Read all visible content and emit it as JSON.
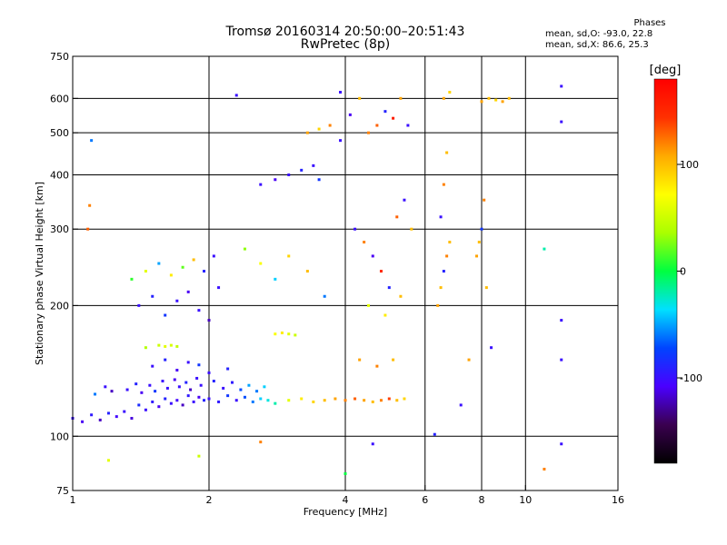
{
  "title": "Tromsø 20160314 20:50:00–20:51:43",
  "subtitle": "RwPretec (8p)",
  "stats": {
    "header": "Phases",
    "line1": "mean, sd,O: -93.0, 22.8",
    "line2": "mean, sd,X:  86.6, 25.3"
  },
  "chart_data": {
    "type": "scatter",
    "title": "Tromsø 20160314 20:50:00–20:51:43",
    "subtitle": "RwPretec (8p)",
    "xlabel": "Frequency [MHz]",
    "ylabel": "Stationary phase Virtual Height [km]",
    "x_scale": "log",
    "y_scale": "log",
    "xlim": [
      1,
      16
    ],
    "ylim": [
      75,
      750
    ],
    "x_ticks": [
      1,
      2,
      4,
      6,
      8,
      10,
      16
    ],
    "x_tick_labels": [
      "1",
      "2",
      "4",
      "6",
      "8",
      "10",
      "16"
    ],
    "y_ticks": [
      75,
      100,
      200,
      300,
      400,
      500,
      600,
      750
    ],
    "y_tick_labels": [
      "75",
      "100",
      "200",
      "300",
      "400",
      "500",
      "600",
      "750"
    ],
    "grid": true,
    "grid_x": [
      2,
      4,
      6,
      8,
      10
    ],
    "grid_y": [
      100,
      200,
      300,
      400,
      500,
      600
    ],
    "colorbar": {
      "label": "[deg]",
      "range": [
        -180,
        180
      ],
      "ticks": [
        -100,
        0,
        100
      ],
      "tick_labels": [
        "-100",
        "0",
        "100"
      ],
      "colors": [
        "#000000",
        "#3a004f",
        "#4a00ff",
        "#0044ff",
        "#00e0ff",
        "#00ff40",
        "#aaff00",
        "#ffff00",
        "#ffaa00",
        "#ff3000",
        "#ff0000"
      ]
    },
    "series": [
      {
        "values": [
          {
            "x": 1.0,
            "y": 110,
            "c": -100
          },
          {
            "x": 1.05,
            "y": 108,
            "c": -110
          },
          {
            "x": 1.1,
            "y": 112,
            "c": -95
          },
          {
            "x": 1.15,
            "y": 109,
            "c": -120
          },
          {
            "x": 1.2,
            "y": 113,
            "c": -90
          },
          {
            "x": 1.25,
            "y": 111,
            "c": -105
          },
          {
            "x": 1.3,
            "y": 114,
            "c": -100
          },
          {
            "x": 1.35,
            "y": 110,
            "c": -115
          },
          {
            "x": 1.4,
            "y": 118,
            "c": -85
          },
          {
            "x": 1.45,
            "y": 115,
            "c": -100
          },
          {
            "x": 1.5,
            "y": 120,
            "c": -95
          },
          {
            "x": 1.55,
            "y": 117,
            "c": -110
          },
          {
            "x": 1.6,
            "y": 122,
            "c": -90
          },
          {
            "x": 1.65,
            "y": 119,
            "c": -100
          },
          {
            "x": 1.7,
            "y": 121,
            "c": -105
          },
          {
            "x": 1.75,
            "y": 118,
            "c": -120
          },
          {
            "x": 1.8,
            "y": 124,
            "c": -95
          },
          {
            "x": 1.85,
            "y": 120,
            "c": -100
          },
          {
            "x": 1.9,
            "y": 123,
            "c": -110
          },
          {
            "x": 1.95,
            "y": 121,
            "c": -90
          },
          {
            "x": 2.0,
            "y": 122,
            "c": -100
          },
          {
            "x": 2.1,
            "y": 120,
            "c": -95
          },
          {
            "x": 2.2,
            "y": 124,
            "c": -80
          },
          {
            "x": 2.3,
            "y": 121,
            "c": -100
          },
          {
            "x": 2.4,
            "y": 123,
            "c": -70
          },
          {
            "x": 2.5,
            "y": 120,
            "c": -60
          },
          {
            "x": 2.6,
            "y": 122,
            "c": -40
          },
          {
            "x": 2.7,
            "y": 121,
            "c": -30
          },
          {
            "x": 2.8,
            "y": 119,
            "c": -20
          },
          {
            "x": 3.0,
            "y": 121,
            "c": 60
          },
          {
            "x": 3.2,
            "y": 122,
            "c": 80
          },
          {
            "x": 3.4,
            "y": 120,
            "c": 90
          },
          {
            "x": 3.6,
            "y": 121,
            "c": 100
          },
          {
            "x": 3.8,
            "y": 122,
            "c": 110
          },
          {
            "x": 4.0,
            "y": 121,
            "c": 120
          },
          {
            "x": 4.2,
            "y": 122,
            "c": 130
          },
          {
            "x": 4.4,
            "y": 121,
            "c": 110
          },
          {
            "x": 4.6,
            "y": 120,
            "c": 100
          },
          {
            "x": 4.8,
            "y": 121,
            "c": 120
          },
          {
            "x": 5.0,
            "y": 122,
            "c": 140
          },
          {
            "x": 5.2,
            "y": 121,
            "c": 100
          },
          {
            "x": 5.4,
            "y": 122,
            "c": 90
          },
          {
            "x": 1.12,
            "y": 125,
            "c": -60
          },
          {
            "x": 1.18,
            "y": 130,
            "c": -100
          },
          {
            "x": 1.22,
            "y": 127,
            "c": -120
          },
          {
            "x": 1.32,
            "y": 128,
            "c": -100
          },
          {
            "x": 1.38,
            "y": 132,
            "c": -90
          },
          {
            "x": 1.42,
            "y": 126,
            "c": -110
          },
          {
            "x": 1.48,
            "y": 131,
            "c": -100
          },
          {
            "x": 1.52,
            "y": 127,
            "c": -80
          },
          {
            "x": 1.58,
            "y": 134,
            "c": -100
          },
          {
            "x": 1.62,
            "y": 129,
            "c": -100
          },
          {
            "x": 1.68,
            "y": 135,
            "c": -110
          },
          {
            "x": 1.72,
            "y": 130,
            "c": -100
          },
          {
            "x": 1.78,
            "y": 133,
            "c": -90
          },
          {
            "x": 1.82,
            "y": 128,
            "c": -120
          },
          {
            "x": 1.88,
            "y": 136,
            "c": -100
          },
          {
            "x": 1.92,
            "y": 131,
            "c": -100
          },
          {
            "x": 2.05,
            "y": 134,
            "c": -90
          },
          {
            "x": 2.15,
            "y": 129,
            "c": -100
          },
          {
            "x": 2.25,
            "y": 133,
            "c": -95
          },
          {
            "x": 2.35,
            "y": 128,
            "c": -70
          },
          {
            "x": 2.45,
            "y": 131,
            "c": -50
          },
          {
            "x": 2.55,
            "y": 127,
            "c": -60
          },
          {
            "x": 2.65,
            "y": 130,
            "c": -40
          },
          {
            "x": 1.5,
            "y": 145,
            "c": -100
          },
          {
            "x": 1.6,
            "y": 150,
            "c": -90
          },
          {
            "x": 1.7,
            "y": 142,
            "c": -110
          },
          {
            "x": 1.8,
            "y": 148,
            "c": -100
          },
          {
            "x": 1.9,
            "y": 146,
            "c": -80
          },
          {
            "x": 2.0,
            "y": 140,
            "c": -100
          },
          {
            "x": 2.2,
            "y": 143,
            "c": -90
          },
          {
            "x": 1.45,
            "y": 160,
            "c": 40
          },
          {
            "x": 1.55,
            "y": 162,
            "c": 50
          },
          {
            "x": 1.6,
            "y": 161,
            "c": 60
          },
          {
            "x": 1.65,
            "y": 162,
            "c": 55
          },
          {
            "x": 1.7,
            "y": 161,
            "c": 45
          },
          {
            "x": 2.8,
            "y": 172,
            "c": 70
          },
          {
            "x": 2.9,
            "y": 173,
            "c": 80
          },
          {
            "x": 3.0,
            "y": 172,
            "c": 60
          },
          {
            "x": 3.1,
            "y": 171,
            "c": 50
          },
          {
            "x": 1.4,
            "y": 200,
            "c": -100
          },
          {
            "x": 1.5,
            "y": 210,
            "c": -90
          },
          {
            "x": 1.6,
            "y": 190,
            "c": -80
          },
          {
            "x": 1.7,
            "y": 205,
            "c": -100
          },
          {
            "x": 1.8,
            "y": 215,
            "c": -110
          },
          {
            "x": 1.9,
            "y": 195,
            "c": -100
          },
          {
            "x": 2.0,
            "y": 185,
            "c": -120
          },
          {
            "x": 2.1,
            "y": 220,
            "c": -100
          },
          {
            "x": 1.35,
            "y": 230,
            "c": 10
          },
          {
            "x": 1.45,
            "y": 240,
            "c": 60
          },
          {
            "x": 1.55,
            "y": 250,
            "c": -50
          },
          {
            "x": 1.65,
            "y": 235,
            "c": 80
          },
          {
            "x": 1.75,
            "y": 245,
            "c": 20
          },
          {
            "x": 1.85,
            "y": 255,
            "c": 100
          },
          {
            "x": 1.95,
            "y": 240,
            "c": -90
          },
          {
            "x": 2.05,
            "y": 260,
            "c": -100
          },
          {
            "x": 2.4,
            "y": 270,
            "c": 30
          },
          {
            "x": 2.6,
            "y": 250,
            "c": 70
          },
          {
            "x": 2.8,
            "y": 230,
            "c": -40
          },
          {
            "x": 3.0,
            "y": 260,
            "c": 90
          },
          {
            "x": 3.3,
            "y": 240,
            "c": 100
          },
          {
            "x": 3.6,
            "y": 210,
            "c": -60
          },
          {
            "x": 2.6,
            "y": 380,
            "c": -100
          },
          {
            "x": 2.8,
            "y": 390,
            "c": -110
          },
          {
            "x": 3.0,
            "y": 400,
            "c": -100
          },
          {
            "x": 3.2,
            "y": 410,
            "c": -90
          },
          {
            "x": 3.4,
            "y": 420,
            "c": -100
          },
          {
            "x": 3.5,
            "y": 390,
            "c": -80
          },
          {
            "x": 3.3,
            "y": 500,
            "c": 110
          },
          {
            "x": 3.5,
            "y": 510,
            "c": 90
          },
          {
            "x": 3.7,
            "y": 520,
            "c": 120
          },
          {
            "x": 3.9,
            "y": 480,
            "c": -100
          },
          {
            "x": 4.1,
            "y": 550,
            "c": -110
          },
          {
            "x": 4.3,
            "y": 600,
            "c": 100
          },
          {
            "x": 4.5,
            "y": 500,
            "c": 120
          },
          {
            "x": 4.7,
            "y": 520,
            "c": 130
          },
          {
            "x": 4.9,
            "y": 560,
            "c": -90
          },
          {
            "x": 5.1,
            "y": 540,
            "c": 160
          },
          {
            "x": 5.3,
            "y": 600,
            "c": 110
          },
          {
            "x": 5.5,
            "y": 520,
            "c": -100
          },
          {
            "x": 4.2,
            "y": 300,
            "c": -100
          },
          {
            "x": 4.4,
            "y": 280,
            "c": 120
          },
          {
            "x": 4.6,
            "y": 260,
            "c": -110
          },
          {
            "x": 4.8,
            "y": 240,
            "c": 150
          },
          {
            "x": 5.0,
            "y": 220,
            "c": -90
          },
          {
            "x": 5.2,
            "y": 320,
            "c": 130
          },
          {
            "x": 5.4,
            "y": 350,
            "c": -100
          },
          {
            "x": 5.6,
            "y": 300,
            "c": 100
          },
          {
            "x": 4.5,
            "y": 200,
            "c": 60
          },
          {
            "x": 4.9,
            "y": 190,
            "c": 80
          },
          {
            "x": 5.3,
            "y": 210,
            "c": 100
          },
          {
            "x": 4.3,
            "y": 150,
            "c": 110
          },
          {
            "x": 4.7,
            "y": 145,
            "c": 120
          },
          {
            "x": 5.1,
            "y": 150,
            "c": 100
          },
          {
            "x": 6.4,
            "y": 200,
            "c": 110
          },
          {
            "x": 6.5,
            "y": 220,
            "c": 100
          },
          {
            "x": 6.6,
            "y": 240,
            "c": -90
          },
          {
            "x": 6.7,
            "y": 260,
            "c": 120
          },
          {
            "x": 6.8,
            "y": 280,
            "c": 100
          },
          {
            "x": 6.5,
            "y": 320,
            "c": -100
          },
          {
            "x": 6.6,
            "y": 380,
            "c": 120
          },
          {
            "x": 6.7,
            "y": 450,
            "c": 100
          },
          {
            "x": 6.6,
            "y": 600,
            "c": 110
          },
          {
            "x": 6.8,
            "y": 620,
            "c": 90
          },
          {
            "x": 7.8,
            "y": 260,
            "c": 110
          },
          {
            "x": 7.9,
            "y": 280,
            "c": 100
          },
          {
            "x": 8.0,
            "y": 300,
            "c": -80
          },
          {
            "x": 8.1,
            "y": 350,
            "c": 120
          },
          {
            "x": 8.2,
            "y": 220,
            "c": 100
          },
          {
            "x": 8.0,
            "y": 590,
            "c": 110
          },
          {
            "x": 8.3,
            "y": 600,
            "c": 100
          },
          {
            "x": 8.6,
            "y": 595,
            "c": 90
          },
          {
            "x": 8.9,
            "y": 590,
            "c": 110
          },
          {
            "x": 9.2,
            "y": 600,
            "c": 100
          },
          {
            "x": 1.08,
            "y": 300,
            "c": 130
          },
          {
            "x": 1.09,
            "y": 340,
            "c": 120
          },
          {
            "x": 1.1,
            "y": 480,
            "c": -60
          },
          {
            "x": 2.3,
            "y": 610,
            "c": -100
          },
          {
            "x": 3.9,
            "y": 620,
            "c": -100
          },
          {
            "x": 11.0,
            "y": 270,
            "c": -20
          },
          {
            "x": 12.0,
            "y": 640,
            "c": -100
          },
          {
            "x": 12.0,
            "y": 530,
            "c": -100
          },
          {
            "x": 12.0,
            "y": 185,
            "c": -100
          },
          {
            "x": 12.0,
            "y": 150,
            "c": -100
          },
          {
            "x": 12.0,
            "y": 96,
            "c": -100
          },
          {
            "x": 11.0,
            "y": 84,
            "c": 120
          },
          {
            "x": 1.2,
            "y": 88,
            "c": 60
          },
          {
            "x": 1.9,
            "y": 90,
            "c": 50
          },
          {
            "x": 2.6,
            "y": 97,
            "c": 120
          },
          {
            "x": 4.0,
            "y": 82,
            "c": 0
          },
          {
            "x": 4.6,
            "y": 96,
            "c": -100
          },
          {
            "x": 6.3,
            "y": 101,
            "c": -90
          },
          {
            "x": 7.2,
            "y": 118,
            "c": -100
          },
          {
            "x": 7.5,
            "y": 150,
            "c": 110
          },
          {
            "x": 8.4,
            "y": 160,
            "c": -100
          }
        ]
      }
    ]
  }
}
